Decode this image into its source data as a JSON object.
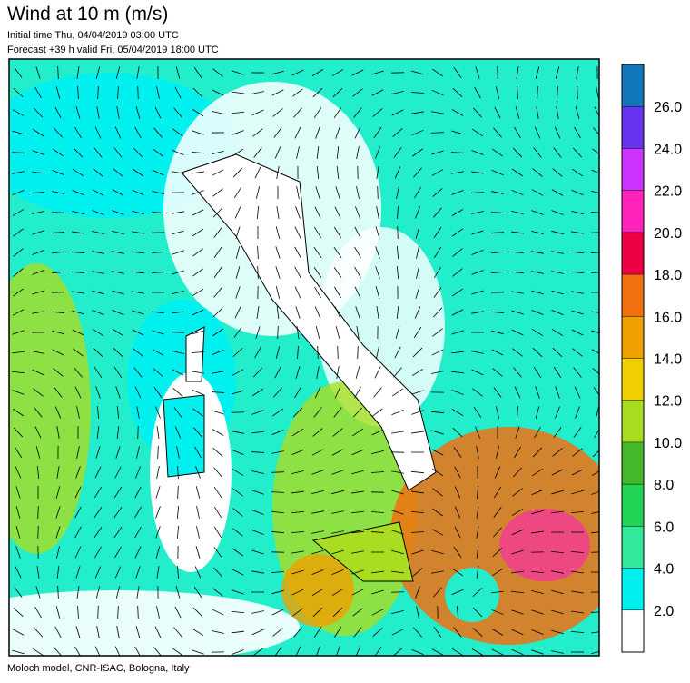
{
  "header": {
    "title": "Wind at 10 m (m/s)",
    "initial_time": "Initial time  Thu, 04/04/2019 03:00 UTC",
    "forecast": "Forecast +39 h valid  Fri, 05/04/2019 18:00 UTC"
  },
  "footer": "Moloch model, CNR-ISAC, Bologna, Italy",
  "colorbar": {
    "clim": [
      0,
      28
    ],
    "colors": [
      "#ffffff",
      "#00f0f0",
      "#33e899",
      "#22d455",
      "#44b82a",
      "#aadd22",
      "#f0d000",
      "#f0a000",
      "#f07010",
      "#ee0044",
      "#ff22bb",
      "#cc33ff",
      "#6633ee",
      "#1177bb"
    ],
    "ticks": [
      {
        "value": 2,
        "label": "2.0"
      },
      {
        "value": 4,
        "label": "4.0"
      },
      {
        "value": 6,
        "label": "6.0"
      },
      {
        "value": 8,
        "label": "8.0"
      },
      {
        "value": 10,
        "label": "10.0"
      },
      {
        "value": 12,
        "label": "12.0"
      },
      {
        "value": 14,
        "label": "14.0"
      },
      {
        "value": 16,
        "label": "16.0"
      },
      {
        "value": 18,
        "label": "18.0"
      },
      {
        "value": 20,
        "label": "20.0"
      },
      {
        "value": 22,
        "label": "22.0"
      },
      {
        "value": 24,
        "label": "24.0"
      },
      {
        "value": 26,
        "label": "26.0"
      }
    ]
  }
}
